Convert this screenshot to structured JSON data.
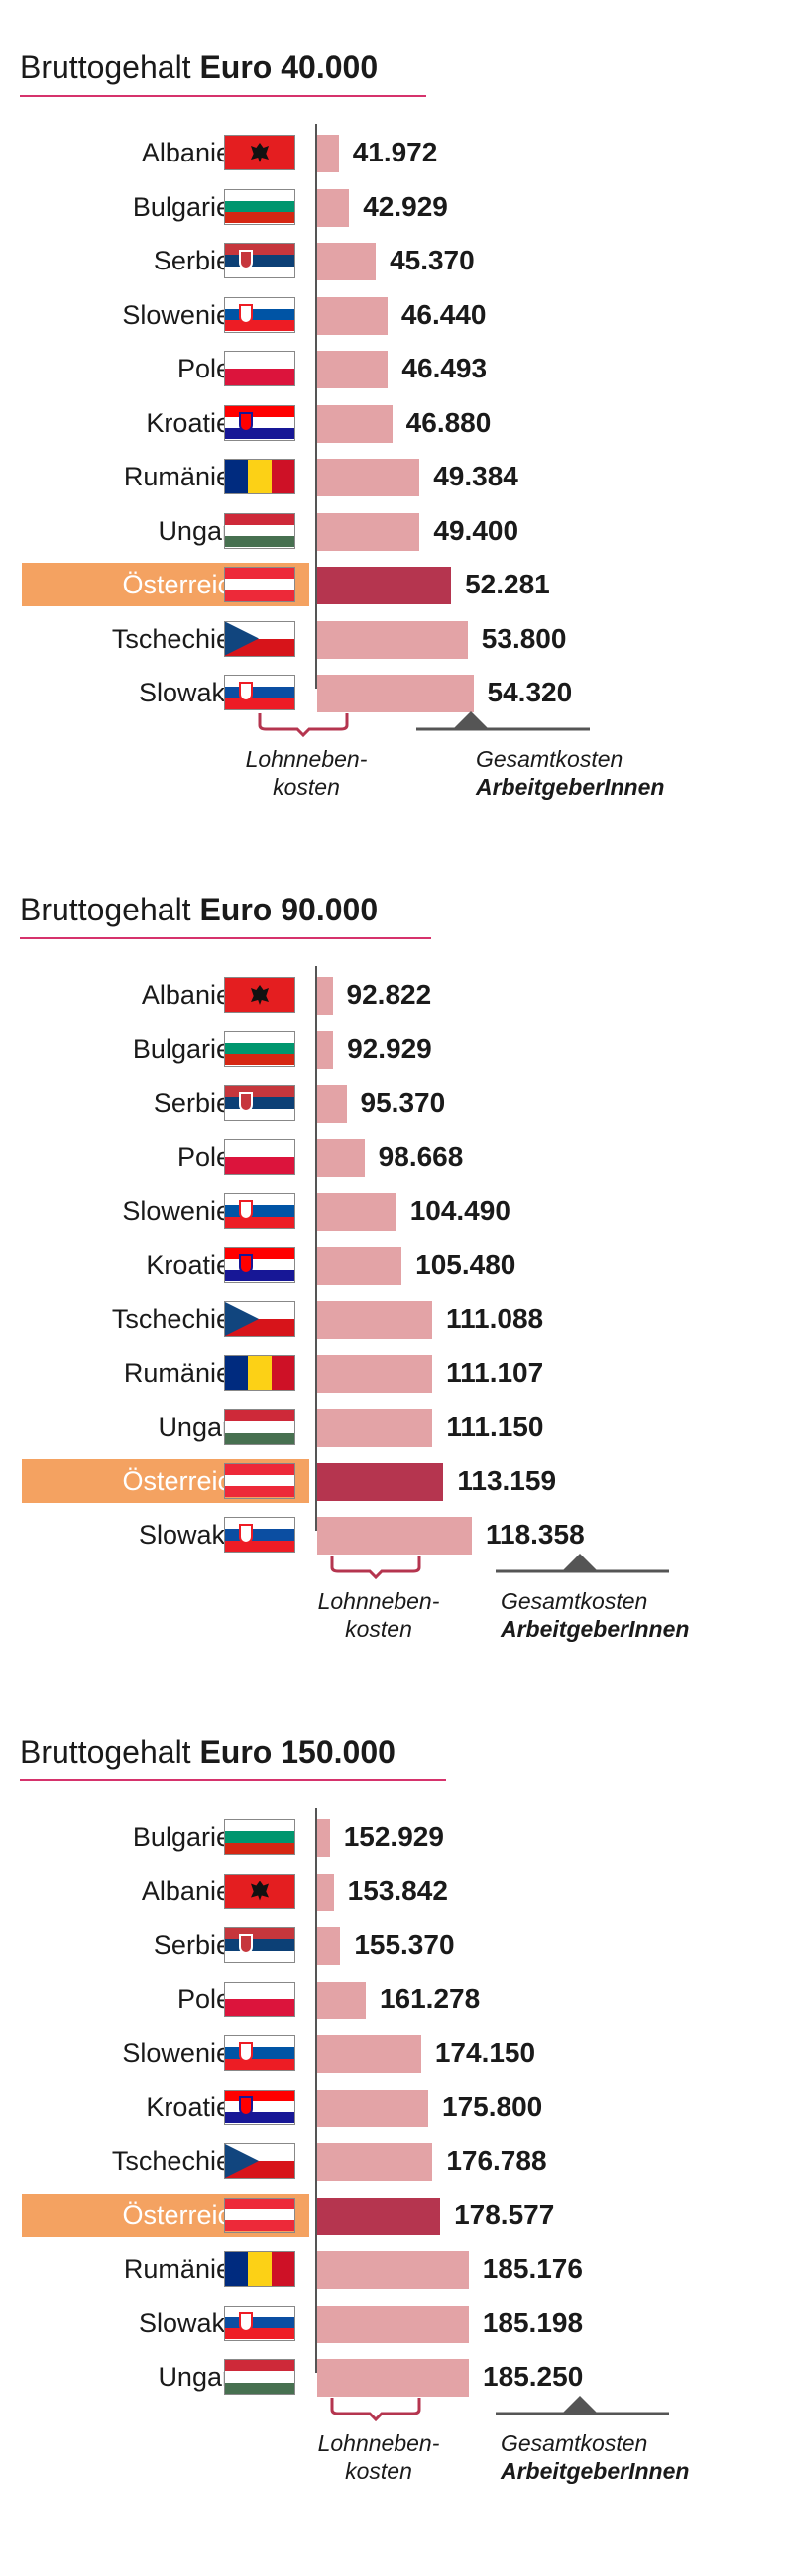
{
  "unit": "Euro",
  "chart_data": [
    {
      "type": "bar",
      "title": "Bruttogehalt Euro 40.000",
      "title_prefix": "Bruttogehalt",
      "title_amount": "Euro 40.000",
      "highlight": "Österreich",
      "xlim": [
        40000,
        55000
      ],
      "categories": [
        "Albanien",
        "Bulgarien",
        "Serbien",
        "Slowenien",
        "Polen",
        "Kroatien",
        "Rumänien",
        "Ungarn",
        "Österreich",
        "Tschechien",
        "Slowakei"
      ],
      "values": [
        41972,
        42929,
        45370,
        46440,
        46493,
        46880,
        49384,
        49400,
        52281,
        53800,
        54320
      ],
      "labels": [
        "41.972",
        "42.929",
        "45.370",
        "46.440",
        "46.493",
        "46.880",
        "49.384",
        "49.400",
        "52.281",
        "53.800",
        "54.320"
      ],
      "legend": {
        "bracket": "Lohnneben-\nkosten",
        "total_line1": "Gesamtkosten",
        "total_line2": "ArbeitgeberInnen"
      }
    },
    {
      "type": "bar",
      "title": "Bruttogehalt Euro 90.000",
      "title_prefix": "Bruttogehalt",
      "title_amount": "Euro 90.000",
      "highlight": "Österreich",
      "xlim": [
        90000,
        120000
      ],
      "categories": [
        "Albanien",
        "Bulgarien",
        "Serbien",
        "Polen",
        "Slowenien",
        "Kroatien",
        "Tschechien",
        "Rumänien",
        "Ungarn",
        "Österreich",
        "Slowakei"
      ],
      "values": [
        92822,
        92929,
        95370,
        98668,
        104490,
        105480,
        111088,
        111107,
        111150,
        113159,
        118358
      ],
      "labels": [
        "92.822",
        "92.929",
        "95.370",
        "98.668",
        "104.490",
        "105.480",
        "111.088",
        "111.107",
        "111.150",
        "113.159",
        "118.358"
      ],
      "legend": {
        "bracket": "Lohnneben-\nkosten",
        "total_line1": "Gesamtkosten",
        "total_line2": "ArbeitgeberInnen"
      }
    },
    {
      "type": "bar",
      "title": "Bruttogehalt Euro 150.000",
      "title_prefix": "Bruttogehalt",
      "title_amount": "Euro 150.000",
      "highlight": "Österreich",
      "xlim": [
        150000,
        188000
      ],
      "categories": [
        "Bulgarien",
        "Albanien",
        "Serbien",
        "Polen",
        "Slowenien",
        "Kroatien",
        "Tschechien",
        "Österreich",
        "Rumänien",
        "Slowakei",
        "Ungarn"
      ],
      "values": [
        152929,
        153842,
        155370,
        161278,
        174150,
        175800,
        176788,
        178577,
        185176,
        185198,
        185250
      ],
      "labels": [
        "152.929",
        "153.842",
        "155.370",
        "161.278",
        "174.150",
        "175.800",
        "176.788",
        "178.577",
        "185.176",
        "185.198",
        "185.250"
      ],
      "legend": {
        "bracket": "Lohnneben-\nkosten",
        "total_line1": "Gesamtkosten",
        "total_line2": "ArbeitgeberInnen"
      }
    }
  ],
  "flags": {
    "Albanien": {
      "type": "albania",
      "colors": [
        "#e41e20",
        "#111111"
      ]
    },
    "Bulgarien": {
      "type": "h",
      "colors": [
        "#ffffff",
        "#00966e",
        "#d62612"
      ]
    },
    "Serbien": {
      "type": "h",
      "colors": [
        "#c6363c",
        "#0c4076",
        "#ffffff"
      ],
      "emblem": true
    },
    "Slowenien": {
      "type": "h",
      "colors": [
        "#ffffff",
        "#0054a5",
        "#ed1c24"
      ],
      "emblem": true
    },
    "Polen": {
      "type": "h",
      "colors": [
        "#ffffff",
        "#dc143c"
      ]
    },
    "Kroatien": {
      "type": "h",
      "colors": [
        "#ff0000",
        "#ffffff",
        "#171796"
      ],
      "emblem": true
    },
    "Rumänien": {
      "type": "v",
      "colors": [
        "#002b7f",
        "#fcd116",
        "#ce1126"
      ]
    },
    "Ungarn": {
      "type": "h",
      "colors": [
        "#ce2939",
        "#ffffff",
        "#477050"
      ]
    },
    "Österreich": {
      "type": "h",
      "colors": [
        "#ed2939",
        "#ffffff",
        "#ed2939"
      ]
    },
    "Tschechien": {
      "type": "czech",
      "colors": [
        "#ffffff",
        "#d7141a",
        "#11457e"
      ]
    },
    "Slowakei": {
      "type": "h",
      "colors": [
        "#ffffff",
        "#0b4ea2",
        "#ee1c25"
      ],
      "emblem": true
    }
  },
  "colors": {
    "bar": "#e3a3a6",
    "bar_highlight": "#b5354f",
    "row_highlight": "#f4a261",
    "title_underline": "#d6336c",
    "legend_ink": "#555555"
  }
}
